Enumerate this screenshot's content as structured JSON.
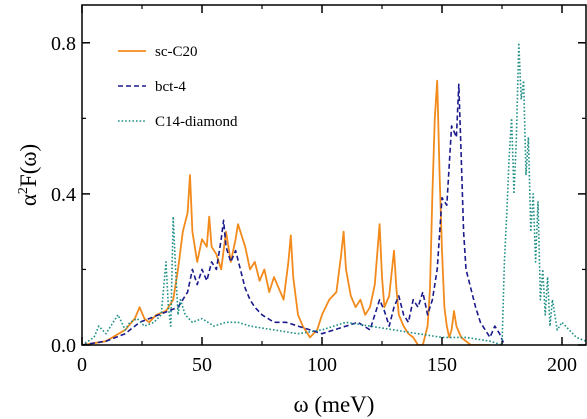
{
  "chart_data": {
    "type": "line",
    "title": "",
    "xlabel": "ω (meV)",
    "ylabel_base": "α",
    "ylabel_sup": "2",
    "ylabel_rest": "F(ω)",
    "xlim": [
      0,
      210
    ],
    "ylim": [
      0,
      0.9
    ],
    "x_ticks": [
      0,
      50,
      100,
      150,
      200
    ],
    "x_tick_labels": [
      "0",
      "50",
      "100",
      "150",
      "200"
    ],
    "y_ticks": [
      0.0,
      0.4,
      0.8
    ],
    "y_tick_labels": [
      "0.0",
      "0.4",
      "0.8"
    ],
    "grid": false,
    "legend_position": "top-left",
    "series": [
      {
        "name": "sc-C20",
        "color": "#f28a1c",
        "style": "solid",
        "x": [
          0,
          10,
          18,
          22,
          24,
          26,
          28,
          31,
          35,
          38,
          40,
          42,
          44,
          45,
          46,
          48,
          50,
          52,
          53,
          54,
          56,
          58,
          60,
          62,
          64,
          65,
          66,
          68,
          70,
          72,
          74,
          76,
          78,
          80,
          82,
          84,
          86,
          87,
          88,
          90,
          92,
          95,
          98,
          100,
          103,
          106,
          108,
          109,
          110,
          112,
          114,
          116,
          118,
          120,
          122,
          124,
          125,
          126,
          128,
          130,
          131,
          132,
          134,
          136,
          138,
          140,
          142,
          144,
          145,
          146,
          147,
          148,
          149,
          150,
          151,
          152,
          153,
          154,
          155,
          156,
          158,
          162,
          166,
          170
        ],
        "y": [
          0.0,
          0.01,
          0.04,
          0.07,
          0.1,
          0.07,
          0.06,
          0.08,
          0.09,
          0.12,
          0.2,
          0.3,
          0.35,
          0.45,
          0.3,
          0.22,
          0.28,
          0.26,
          0.34,
          0.26,
          0.24,
          0.2,
          0.3,
          0.22,
          0.28,
          0.32,
          0.3,
          0.26,
          0.2,
          0.22,
          0.17,
          0.2,
          0.14,
          0.18,
          0.15,
          0.12,
          0.22,
          0.29,
          0.18,
          0.08,
          0.05,
          0.02,
          0.04,
          0.08,
          0.12,
          0.14,
          0.24,
          0.3,
          0.2,
          0.13,
          0.1,
          0.12,
          0.08,
          0.1,
          0.16,
          0.32,
          0.18,
          0.1,
          0.13,
          0.25,
          0.15,
          0.08,
          0.05,
          0.03,
          0.02,
          0.0,
          0.0,
          0.05,
          0.15,
          0.4,
          0.6,
          0.7,
          0.45,
          0.25,
          0.1,
          0.05,
          0.02,
          0.04,
          0.09,
          0.05,
          0.02,
          0.0,
          0.0,
          0.0
        ]
      },
      {
        "name": "bct-4",
        "color": "#1a1a8c",
        "style": "dashed",
        "x": [
          0,
          10,
          18,
          24,
          28,
          32,
          36,
          40,
          44,
          46,
          48,
          50,
          52,
          54,
          56,
          58,
          59,
          60,
          62,
          64,
          66,
          68,
          70,
          72,
          75,
          80,
          85,
          90,
          95,
          100,
          105,
          110,
          115,
          120,
          122,
          124,
          126,
          128,
          130,
          132,
          134,
          136,
          138,
          140,
          142,
          144,
          146,
          148,
          150,
          152,
          154,
          156,
          157,
          158,
          159,
          160,
          162,
          164,
          166,
          168,
          170,
          172,
          174,
          176
        ],
        "y": [
          0.0,
          0.01,
          0.03,
          0.06,
          0.07,
          0.08,
          0.09,
          0.1,
          0.14,
          0.2,
          0.16,
          0.2,
          0.17,
          0.22,
          0.2,
          0.28,
          0.33,
          0.26,
          0.22,
          0.25,
          0.2,
          0.15,
          0.12,
          0.1,
          0.08,
          0.06,
          0.06,
          0.05,
          0.04,
          0.03,
          0.04,
          0.05,
          0.06,
          0.04,
          0.08,
          0.12,
          0.09,
          0.05,
          0.1,
          0.13,
          0.08,
          0.06,
          0.12,
          0.1,
          0.14,
          0.08,
          0.12,
          0.2,
          0.39,
          0.37,
          0.58,
          0.55,
          0.69,
          0.5,
          0.3,
          0.2,
          0.15,
          0.1,
          0.06,
          0.04,
          0.02,
          0.05,
          0.03,
          0.0
        ]
      },
      {
        "name": "C14-diamond",
        "color": "#1f8f86",
        "style": "dotted",
        "x": [
          0,
          5,
          7,
          10,
          13,
          15,
          18,
          20,
          23,
          26,
          30,
          33,
          35,
          36,
          37,
          38,
          39,
          40,
          41,
          43,
          46,
          50,
          55,
          60,
          65,
          70,
          80,
          90,
          100,
          110,
          120,
          130,
          140,
          150,
          160,
          170,
          175,
          176,
          177,
          178,
          179,
          180,
          181,
          182,
          183,
          184,
          185,
          186,
          187,
          188,
          189,
          190,
          191,
          192,
          193,
          194,
          195,
          196,
          198,
          200,
          203,
          206,
          210
        ],
        "y": [
          0.0,
          0.02,
          0.05,
          0.03,
          0.06,
          0.08,
          0.04,
          0.06,
          0.07,
          0.05,
          0.06,
          0.08,
          0.22,
          0.1,
          0.05,
          0.34,
          0.2,
          0.08,
          0.12,
          0.08,
          0.06,
          0.07,
          0.05,
          0.06,
          0.06,
          0.05,
          0.04,
          0.03,
          0.04,
          0.06,
          0.05,
          0.04,
          0.03,
          0.02,
          0.02,
          0.01,
          0.0,
          0.22,
          0.35,
          0.5,
          0.6,
          0.4,
          0.55,
          0.8,
          0.65,
          0.7,
          0.45,
          0.55,
          0.3,
          0.4,
          0.22,
          0.38,
          0.12,
          0.2,
          0.08,
          0.18,
          0.05,
          0.12,
          0.04,
          0.06,
          0.04,
          0.02,
          0.01
        ]
      }
    ]
  }
}
